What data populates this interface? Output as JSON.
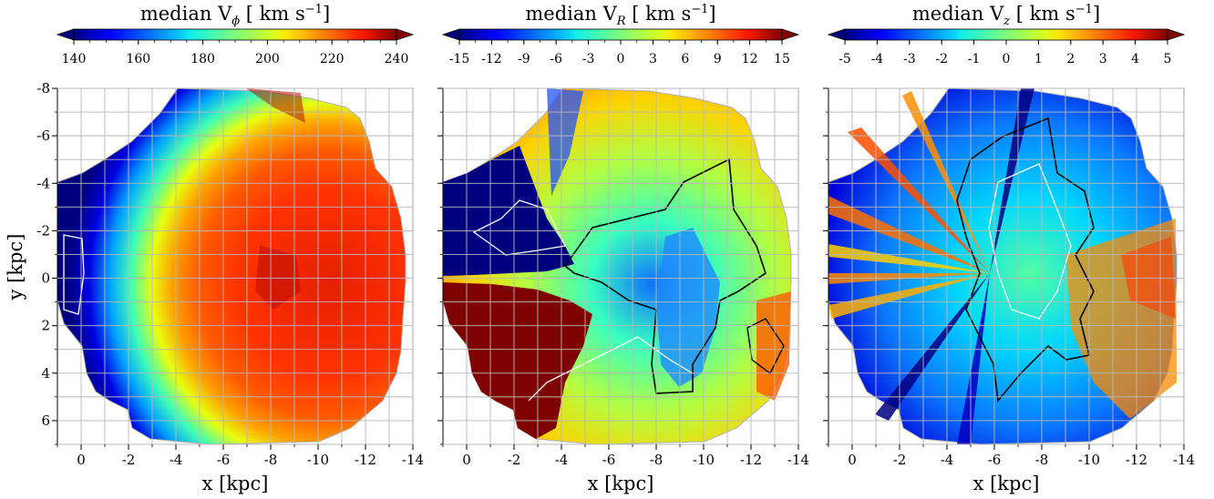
{
  "chart_data": [
    {
      "type": "heatmap",
      "colorbar": {
        "label": "median V",
        "sub": "ϕ",
        "unit": "[ km s",
        "unit_exp": "−1",
        "unit_close": "]",
        "range": [
          140,
          240
        ],
        "ticks": [
          "140",
          "160",
          "180",
          "200",
          "220",
          "240"
        ],
        "tick_values": [
          140,
          160,
          180,
          200,
          220,
          240
        ],
        "levels": 20
      },
      "xlabel": "x [kpc]",
      "ylabel": "y [kpc]",
      "xlim": [
        1,
        -14
      ],
      "ylim": [
        -8,
        7
      ],
      "xticks": [
        "0",
        "-2",
        "-4",
        "-6",
        "-8",
        "-10",
        "-12",
        "-14"
      ],
      "xtick_values": [
        0,
        -2,
        -4,
        -6,
        -8,
        -10,
        -12,
        -14
      ],
      "yticks": [
        "-8",
        "-6",
        "-4",
        "-2",
        "0",
        "2",
        "4",
        "6"
      ],
      "ytick_values": [
        -8,
        -6,
        -4,
        -2,
        0,
        2,
        4,
        6
      ],
      "grid": true
    },
    {
      "type": "heatmap",
      "colorbar": {
        "label": "median V",
        "sub": "R",
        "unit": "[ km s",
        "unit_exp": "−1",
        "unit_close": "]",
        "range": [
          -15,
          15
        ],
        "ticks": [
          "-15",
          "-12",
          "-9",
          "-6",
          "-3",
          "0",
          "3",
          "6",
          "9",
          "12",
          "15"
        ],
        "tick_values": [
          -15,
          -12,
          -9,
          -6,
          -3,
          0,
          3,
          6,
          9,
          12,
          15
        ],
        "levels": 20
      },
      "xlabel": "x [kpc]",
      "xlim": [
        1,
        -14
      ],
      "ylim": [
        -8,
        7
      ],
      "xticks": [
        "0",
        "-2",
        "-4",
        "-6",
        "-8",
        "-10",
        "-12",
        "-14"
      ],
      "xtick_values": [
        0,
        -2,
        -4,
        -6,
        -8,
        -10,
        -12,
        -14
      ],
      "grid": true
    },
    {
      "type": "heatmap",
      "colorbar": {
        "label": "median V",
        "sub": "z",
        "unit": "[ km s",
        "unit_exp": "−1",
        "unit_close": "]",
        "range": [
          -5,
          5
        ],
        "ticks": [
          "-5",
          "-4",
          "-3",
          "-2",
          "-1",
          "0",
          "1",
          "2",
          "3",
          "4",
          "5"
        ],
        "tick_values": [
          -5,
          -4,
          -3,
          -2,
          -1,
          0,
          1,
          2,
          3,
          4,
          5
        ],
        "levels": 10
      },
      "xlabel": "x [kpc]",
      "xlim": [
        1,
        -14
      ],
      "ylim": [
        -8,
        7
      ],
      "xticks": [
        "0",
        "-2",
        "-4",
        "-6",
        "-8",
        "-10",
        "-12",
        "-14"
      ],
      "xtick_values": [
        0,
        -2,
        -4,
        -6,
        -8,
        -10,
        -12,
        -14
      ],
      "grid": true
    }
  ]
}
